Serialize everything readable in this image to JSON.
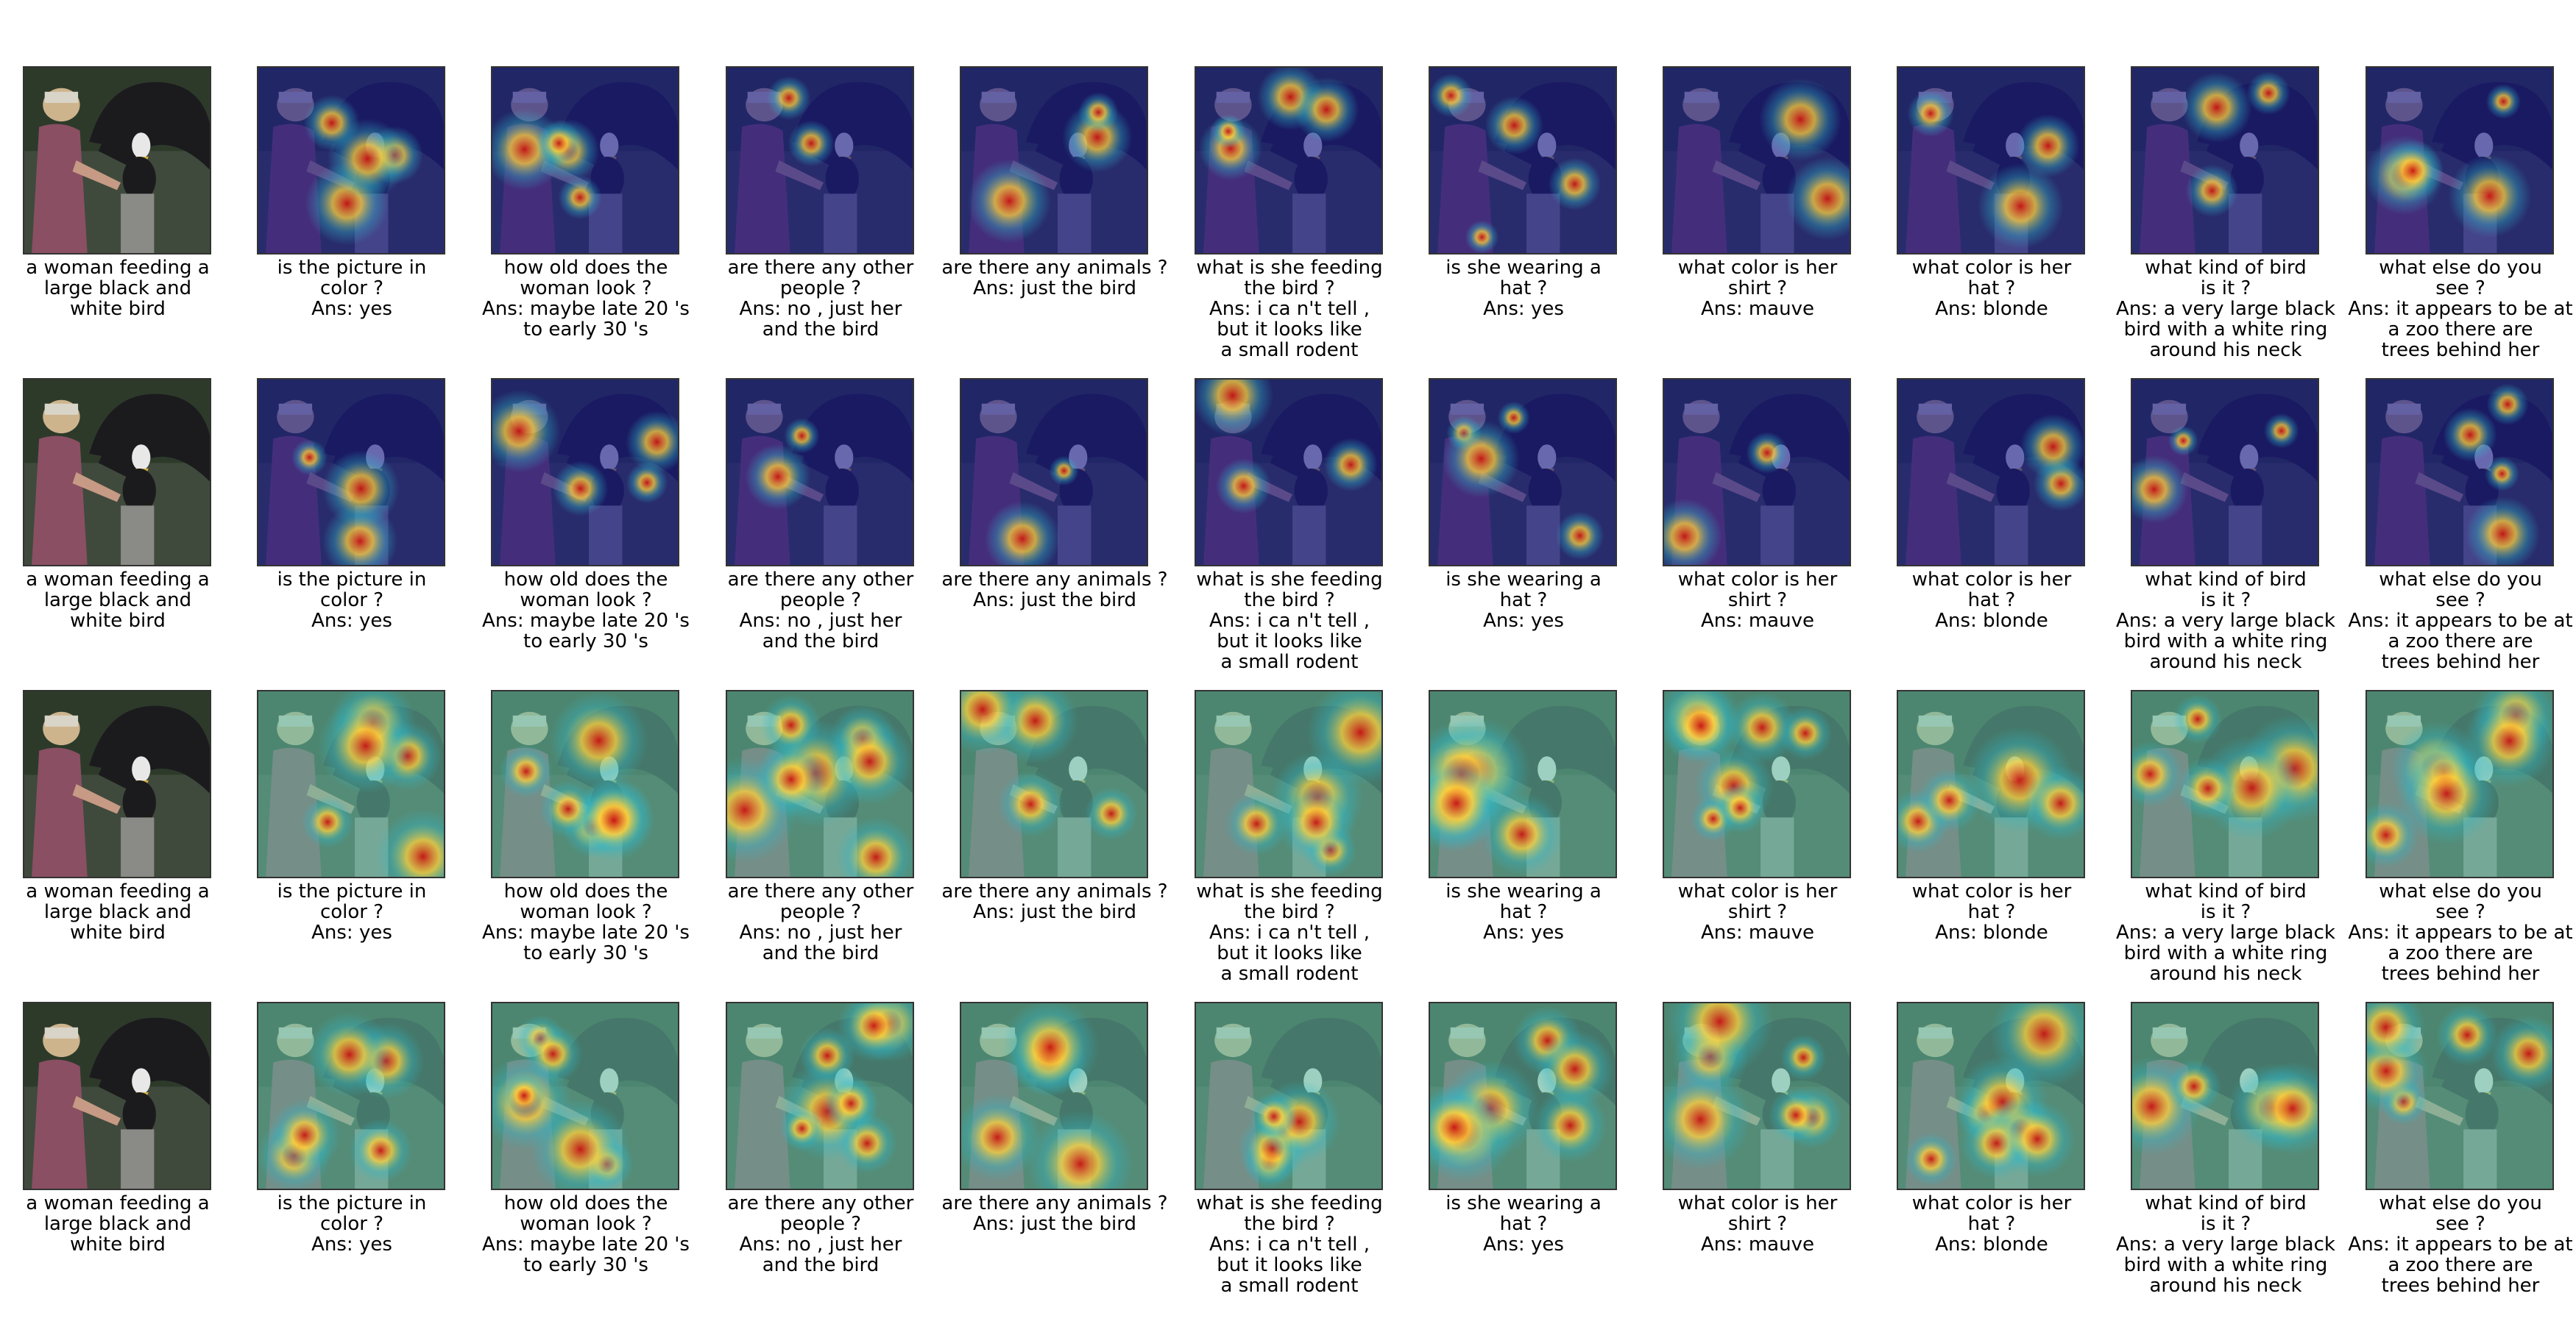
{
  "figure": {
    "base_caption": [
      "a woman feeding a",
      "large black and",
      "white bird"
    ],
    "questions": [
      [
        "is the picture in",
        "color ?",
        "Ans: yes"
      ],
      [
        "how old does the",
        "woman look ?",
        "Ans: maybe late 20 's",
        "to early 30 's"
      ],
      [
        "are there any other",
        "people ?",
        "Ans: no , just her",
        "and the bird"
      ],
      [
        "are there any animals ?",
        "Ans: just the bird"
      ],
      [
        "what is she feeding",
        "the bird ?",
        "Ans: i ca n't tell ,",
        "but it looks like",
        "a small rodent"
      ],
      [
        "is she wearing a",
        "hat ?",
        "Ans: yes"
      ],
      [
        "what color is her",
        "shirt ?",
        "Ans: mauve"
      ],
      [
        "what color is her",
        "hat ?",
        "Ans: blonde"
      ],
      [
        "what kind of bird",
        "is it ?",
        "Ans: a very large black",
        "bird with a white ring",
        "around his neck"
      ],
      [
        "what else do you",
        "see ?",
        "Ans: it appears to be at",
        "a zoo there are",
        "trees behind her"
      ]
    ],
    "row_count": 4
  },
  "colors": {
    "photo_bg": "#3f4a3c",
    "photo_trees": "#2d3a2a",
    "bird": "#1b1b1e",
    "bird_head": "#e8e8e8",
    "woman_shirt": "#8a4f63",
    "woman_hair": "#cdb48c",
    "post": "#8a8a86",
    "jet_low": "#1a1a8c",
    "jet_mid": "#2fb8c8",
    "jet_high": "#ffd23c",
    "jet_peak": "#c81414"
  }
}
